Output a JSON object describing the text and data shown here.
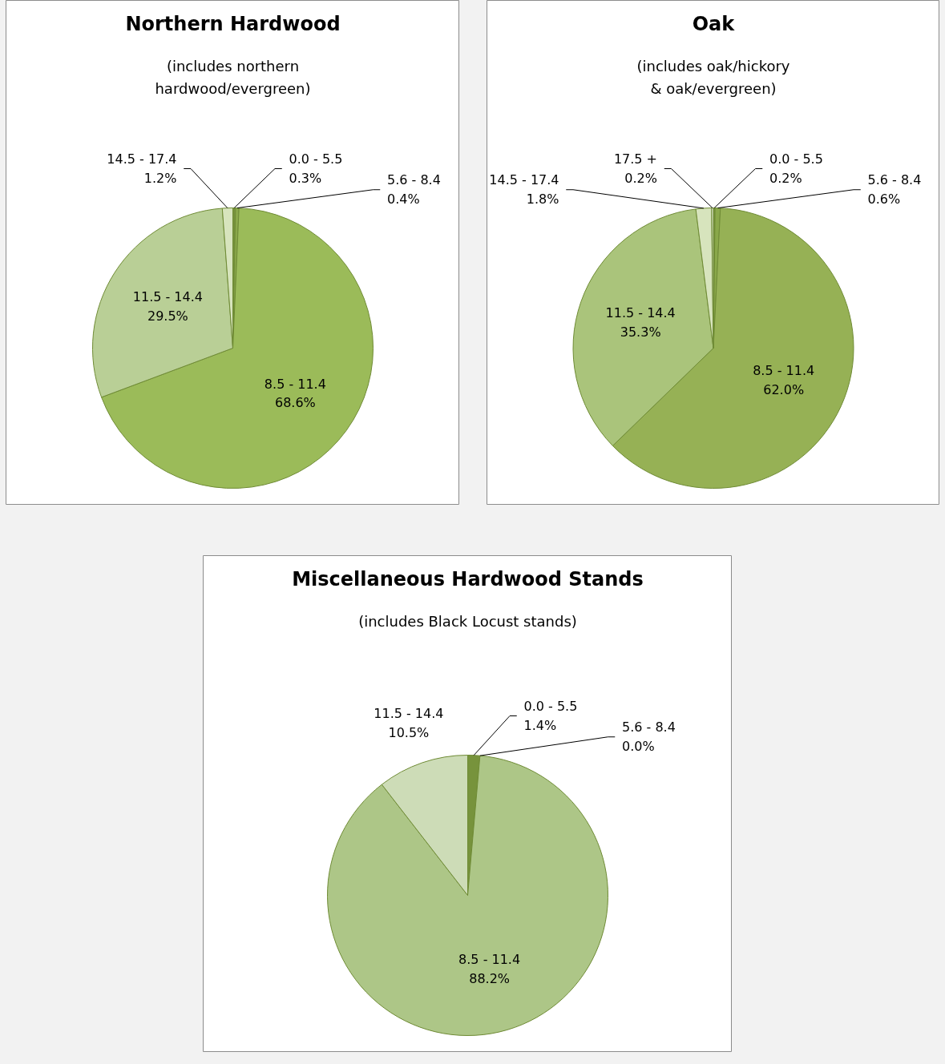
{
  "chart_data": [
    {
      "type": "pie",
      "title": "Northern Hardwood",
      "subtitle": "(includes northern hardwood/evergreen)",
      "categories": [
        "0.0 - 5.5",
        "5.6 - 8.4",
        "8.5 - 11.4",
        "11.5 - 14.4",
        "14.5 - 17.4"
      ],
      "values": [
        0.3,
        0.4,
        68.6,
        29.5,
        1.2
      ],
      "value_labels": [
        "0.3%",
        "0.4%",
        "68.6%",
        "29.5%",
        "1.2%"
      ],
      "colors": [
        "#77933c",
        "#8aa84a",
        "#9bbb59",
        "#b9cf96",
        "#d7e4bd"
      ]
    },
    {
      "type": "pie",
      "title": "Oak",
      "subtitle": "(includes oak/hickory & oak/evergreen)",
      "categories": [
        "0.0 - 5.5",
        "5.6 - 8.4",
        "8.5 - 11.4",
        "11.5 - 14.4",
        "14.5 - 17.4",
        "17.5 +"
      ],
      "values": [
        0.2,
        0.6,
        62.0,
        35.3,
        1.8,
        0.2
      ],
      "value_labels": [
        "0.2%",
        "0.6%",
        "62.0%",
        "35.3%",
        "1.8%",
        "0.2%"
      ],
      "colors": [
        "#77933c",
        "#8aa84a",
        "#96b155",
        "#aac47b",
        "#d7e4bd",
        "#e6eed8"
      ]
    },
    {
      "type": "pie",
      "title": "Miscellaneous Hardwood Stands",
      "subtitle": "(includes Black Locust stands)",
      "categories": [
        "0.0 - 5.5",
        "5.6 - 8.4",
        "8.5 - 11.4",
        "11.5 - 14.4"
      ],
      "values": [
        1.4,
        0.0,
        88.2,
        10.5
      ],
      "value_labels": [
        "1.4%",
        "0.0%",
        "88.2%",
        "10.5%"
      ],
      "colors": [
        "#77933c",
        "#8aa84a",
        "#adc687",
        "#cddcb7"
      ]
    }
  ]
}
